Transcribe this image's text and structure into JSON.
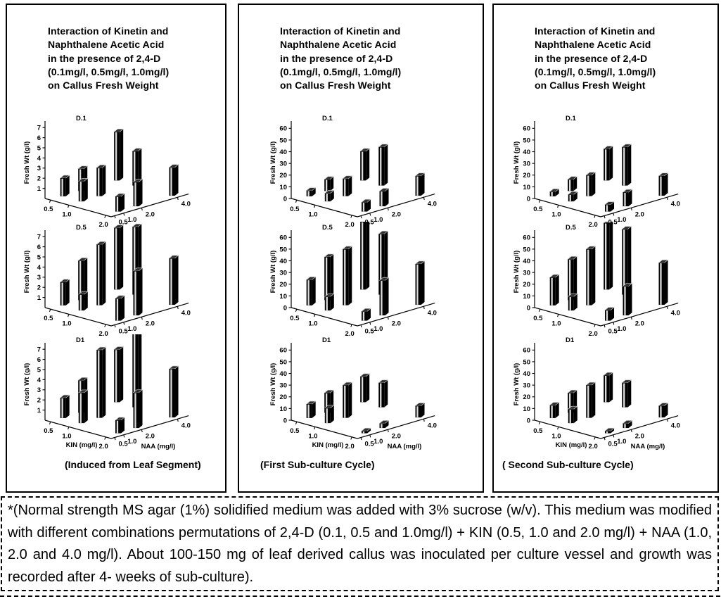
{
  "figure": {
    "panels": [
      {
        "title": "Interaction of Kinetin and\nNaphthalene Acetic Acid\nin the presence of 2,4-D\n(0.1mg/l, 0.5mg/l, 1.0mg/l)\non Callus Fresh Weight",
        "caption": "(Induced from Leaf Segment)"
      },
      {
        "title": "Interaction of Kinetin and\nNaphthalene Acetic Acid\nin the presence of 2,4-D\n(0.1mg/l, 0.5mg/l, 1.0mg/l)\non Callus Fresh Weight",
        "caption": "(First Sub-culture Cycle)"
      },
      {
        "title": "Interaction of Kinetin and\nNaphthalene Acetic Acid\nin the presence of 2,4-D\n(0.1mg/l, 0.5mg/l, 1.0mg/l)\non Callus Fresh Weight",
        "caption": "( Second Sub-culture Cycle)"
      }
    ],
    "axes": {
      "kin_ticks": [
        "0.5",
        "1.0",
        "2.0"
      ],
      "naa_ticks": [
        "0.5",
        "1.0",
        "2.0",
        "4.0"
      ],
      "kin_label": "KIN (mg/l)",
      "naa_label": "NAA (mg/l)",
      "y_label": "Fresh Wt (g/l)"
    },
    "footnote": "*(Normal strength MS agar (1%) solidified medium was added with 3% sucrose (w/v). This medium was modified with different combinations permutations of 2,4-D (0.1, 0.5 and 1.0mg/l) + KIN (0.5, 1.0 and 2.0 mg/l) + NAA (1.0, 2.0 and 4.0 mg/l). About 100-150 mg of leaf derived callus was inoculated per culture vessel and growth was recorded after 4- weeks of sub-culture)."
  },
  "chart_data": [
    {
      "type": "bar",
      "style": "3d-bars",
      "panel": "Induced from Leaf Segment",
      "subplot": "D.1",
      "title": "Interaction of Kinetin and Naphthalene Acetic Acid in the presence of 2,4-D on Callus Fresh Weight",
      "xlabel": "KIN (mg/l)",
      "zlabel": "NAA (mg/l)",
      "ylabel": "Fresh Wt (g/l)",
      "kin": [
        0.5,
        1.0,
        2.0
      ],
      "naa": [
        1.0,
        2.0,
        4.0
      ],
      "ylim": [
        0,
        7.5
      ],
      "yticks": [
        1,
        2,
        3,
        4,
        5,
        6,
        7
      ],
      "values_by_naa": [
        [
          1.8,
          2.0,
          1.5
        ],
        [
          2.2,
          2.8,
          2.4
        ],
        [
          4.8,
          3.4,
          2.8
        ]
      ]
    },
    {
      "type": "bar",
      "style": "3d-bars",
      "panel": "Induced from Leaf Segment",
      "subplot": "D.5",
      "title": "Interaction of Kinetin and Naphthalene Acetic Acid in the presence of 2,4-D on Callus Fresh Weight",
      "xlabel": "KIN (mg/l)",
      "zlabel": "NAA (mg/l)",
      "ylabel": "Fresh Wt (g/l)",
      "kin": [
        0.5,
        1.0,
        2.0
      ],
      "naa": [
        1.0,
        2.0,
        4.0
      ],
      "ylim": [
        0,
        7.5
      ],
      "yticks": [
        1,
        2,
        3,
        4,
        5,
        6,
        7
      ],
      "values_by_naa": [
        [
          2.3,
          1.6,
          2.2
        ],
        [
          3.9,
          6.0,
          4.4
        ],
        [
          6.1,
          6.7,
          4.6
        ]
      ]
    },
    {
      "type": "bar",
      "style": "3d-bars",
      "panel": "Induced from Leaf Segment",
      "subplot": "D1",
      "title": "Interaction of Kinetin and Naphthalene Acetic Acid in the presence of 2,4-D on Callus Fresh Weight",
      "xlabel": "KIN (mg/l)",
      "zlabel": "NAA (mg/l)",
      "ylabel": "Fresh Wt (g/l)",
      "kin": [
        0.5,
        1.0,
        2.0
      ],
      "naa": [
        1.0,
        2.0,
        4.0
      ],
      "ylim": [
        0,
        7.5
      ],
      "yticks": [
        1,
        2,
        3,
        4,
        5,
        6,
        7
      ],
      "values_by_naa": [
        [
          2.0,
          3.0,
          1.3
        ],
        [
          3.2,
          6.7,
          3.5
        ],
        [
          5.2,
          7.6,
          4.8
        ]
      ]
    },
    {
      "type": "bar",
      "style": "3d-bars",
      "panel": "First Sub-culture Cycle",
      "subplot": "D.1",
      "title": "Interaction of Kinetin and Naphthalene Acetic Acid in the presence of 2,4-D on Callus Fresh Weight",
      "xlabel": "KIN (mg/l)",
      "zlabel": "NAA (mg/l)",
      "ylabel": "Fresh Wt (g/l)",
      "kin": [
        0.5,
        1.0,
        2.0
      ],
      "naa": [
        1.0,
        2.0,
        4.0
      ],
      "ylim": [
        0,
        65
      ],
      "yticks": [
        0,
        10,
        20,
        30,
        40,
        50,
        60
      ],
      "values_by_naa": [
        [
          5,
          7,
          8
        ],
        [
          10,
          15,
          13
        ],
        [
          25,
          33,
          17
        ]
      ]
    },
    {
      "type": "bar",
      "style": "3d-bars",
      "panel": "First Sub-culture Cycle",
      "subplot": "D.5",
      "title": "Interaction of Kinetin and Naphthalene Acetic Acid in the presence of 2,4-D on Callus Fresh Weight",
      "xlabel": "KIN (mg/l)",
      "zlabel": "NAA (mg/l)",
      "ylabel": "Fresh Wt (g/l)",
      "kin": [
        0.5,
        1.0,
        2.0
      ],
      "naa": [
        1.0,
        2.0,
        4.0
      ],
      "ylim": [
        0,
        65
      ],
      "yticks": [
        0,
        10,
        20,
        30,
        40,
        50,
        60
      ],
      "values_by_naa": [
        [
          22,
          12,
          8
        ],
        [
          37,
          48,
          30
        ],
        [
          58,
          52,
          35
        ]
      ]
    },
    {
      "type": "bar",
      "style": "3d-bars",
      "panel": "First Sub-culture Cycle",
      "subplot": "D1",
      "title": "Interaction of Kinetin and Naphthalene Acetic Acid in the presence of 2,4-D on Callus Fresh Weight",
      "xlabel": "KIN (mg/l)",
      "zlabel": "NAA (mg/l)",
      "ylabel": "Fresh Wt (g/l)",
      "kin": [
        0.5,
        1.0,
        2.0
      ],
      "naa": [
        1.0,
        2.0,
        4.0
      ],
      "ylim": [
        0,
        65
      ],
      "yticks": [
        0,
        10,
        20,
        30,
        40,
        50,
        60
      ],
      "values_by_naa": [
        [
          12,
          13,
          2
        ],
        [
          17,
          28,
          4
        ],
        [
          22,
          21,
          10
        ]
      ]
    },
    {
      "type": "bar",
      "style": "3d-bars",
      "panel": "Second Sub-culture Cycle",
      "subplot": "D.1",
      "title": "Interaction of Kinetin and Naphthalene Acetic Acid in the presence of 2,4-D on Callus Fresh Weight",
      "xlabel": "KIN (mg/l)",
      "zlabel": "NAA (mg/l)",
      "ylabel": "Fresh Wt (g/l)",
      "kin": [
        0.5,
        1.0,
        2.0
      ],
      "naa": [
        1.0,
        2.0,
        4.0
      ],
      "ylim": [
        0,
        65
      ],
      "yticks": [
        0,
        10,
        20,
        30,
        40,
        50,
        60
      ],
      "values_by_naa": [
        [
          4,
          6,
          6
        ],
        [
          10,
          18,
          12
        ],
        [
          27,
          33,
          17
        ]
      ]
    },
    {
      "type": "bar",
      "style": "3d-bars",
      "panel": "Second Sub-culture Cycle",
      "subplot": "D.5",
      "title": "Interaction of Kinetin and Naphthalene Acetic Acid in the presence of 2,4-D on Callus Fresh Weight",
      "xlabel": "KIN (mg/l)",
      "zlabel": "NAA (mg/l)",
      "ylabel": "Fresh Wt (g/l)",
      "kin": [
        0.5,
        1.0,
        2.0
      ],
      "naa": [
        1.0,
        2.0,
        4.0
      ],
      "ylim": [
        0,
        65
      ],
      "yticks": [
        0,
        10,
        20,
        30,
        40,
        50,
        60
      ],
      "values_by_naa": [
        [
          24,
          12,
          9
        ],
        [
          35,
          48,
          25
        ],
        [
          57,
          56,
          36
        ]
      ]
    },
    {
      "type": "bar",
      "style": "3d-bars",
      "panel": "Second Sub-culture Cycle",
      "subplot": "D1",
      "title": "Interaction of Kinetin and Naphthalene Acetic Acid in the presence of 2,4-D on Callus Fresh Weight",
      "xlabel": "KIN (mg/l)",
      "zlabel": "NAA (mg/l)",
      "ylabel": "Fresh Wt (g/l)",
      "kin": [
        0.5,
        1.0,
        2.0
      ],
      "naa": [
        1.0,
        2.0,
        4.0
      ],
      "ylim": [
        0,
        65
      ],
      "yticks": [
        0,
        10,
        20,
        30,
        40,
        50,
        60
      ],
      "values_by_naa": [
        [
          11,
          12,
          2
        ],
        [
          17,
          28,
          4
        ],
        [
          23,
          21,
          10
        ]
      ]
    }
  ]
}
